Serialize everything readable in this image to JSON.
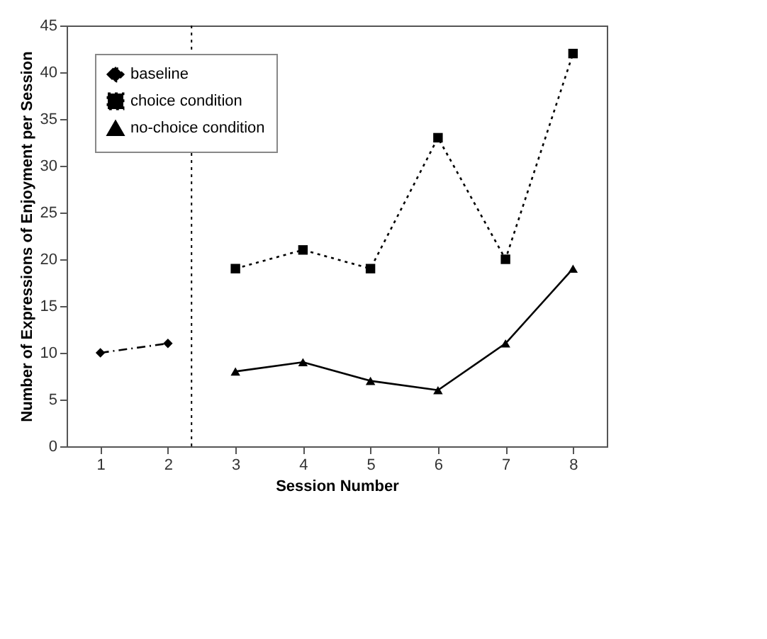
{
  "chart_data": {
    "type": "line",
    "xlabel": "Session Number",
    "ylabel": "Number of Expressions of Enjoyment per Session",
    "xlim": [
      0.5,
      8.5
    ],
    "xticks": [
      1,
      2,
      3,
      4,
      5,
      6,
      7,
      8
    ],
    "ylim": [
      0,
      45
    ],
    "yticks": [
      0,
      5,
      10,
      15,
      20,
      25,
      30,
      35,
      40,
      45
    ],
    "grid": false,
    "legend": "top left",
    "series": [
      {
        "name": "baseline",
        "color": "#000000",
        "x": [
          1,
          2
        ],
        "values": [
          10,
          11
        ],
        "marker": "diamond",
        "line_style": "dashed"
      },
      {
        "name": "choice condition",
        "color": "#000000",
        "x": [
          3,
          4,
          5,
          6,
          7,
          8
        ],
        "values": [
          19,
          21,
          19,
          33,
          20,
          42
        ],
        "marker": "square",
        "line_style": "dotted"
      },
      {
        "name": "no-choice condition",
        "color": "#000000",
        "x": [
          3,
          4,
          5,
          6,
          7,
          8
        ],
        "values": [
          8,
          9,
          7,
          6,
          11,
          19
        ],
        "marker": "triangle",
        "line_style": "solid"
      }
    ],
    "ref_lines": [
      {
        "axis": "x",
        "value": 2.35,
        "color": "#000000",
        "line_style": "dotted"
      }
    ]
  }
}
